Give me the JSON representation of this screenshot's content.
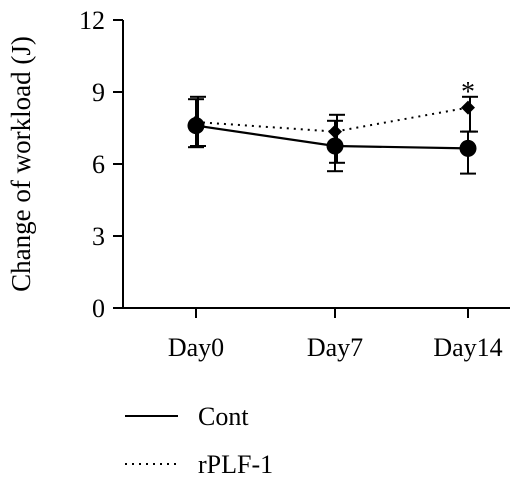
{
  "chart_data": {
    "type": "line",
    "ylabel": "Change of workload (J)",
    "xlabel": "",
    "categories": [
      "Day0",
      "Day7",
      "Day14"
    ],
    "yticks": [
      0,
      3,
      6,
      9,
      12
    ],
    "ylim": [
      0,
      12
    ],
    "grid": false,
    "legend_position": "bottom-left",
    "series": [
      {
        "name": "Cont",
        "line_style": "solid",
        "marker": "circle",
        "values": [
          7.6,
          6.75,
          6.65
        ],
        "error_low": [
          6.7,
          5.7,
          5.6
        ],
        "error_high": [
          8.7,
          7.8,
          7.35
        ]
      },
      {
        "name": "rPLF-1",
        "line_style": "dotted",
        "marker": "diamond",
        "values": [
          7.75,
          7.35,
          8.35
        ],
        "error_low": [
          6.75,
          6.05,
          7.35
        ],
        "error_high": [
          8.8,
          8.05,
          8.8
        ]
      }
    ],
    "annotations": [
      {
        "text": "*",
        "category": "Day14",
        "value": 9.2
      }
    ]
  }
}
